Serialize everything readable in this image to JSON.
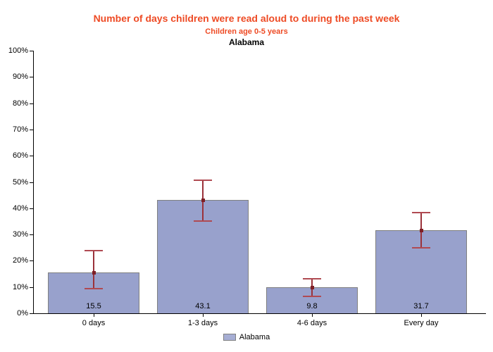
{
  "header": {
    "title": "Number of days children were read aloud to during the past week",
    "subtitle": "Children age 0-5 years",
    "region_title": "Alabama"
  },
  "colors": {
    "title": "#ee4b25",
    "subtitle": "#ee4b25",
    "region_title": "#000000",
    "bar_fill": "#98a1cc",
    "bar_border": "#808080",
    "legend_swatch_fill": "#a6aed4",
    "error_line": "#9b323a",
    "error_cap": "#b04a52",
    "error_dot": "#7e1f26",
    "axis": "#000000"
  },
  "chart_data": {
    "type": "bar",
    "title": "Number of days children were read aloud to during the past week",
    "subtitle": "Children age 0-5 years",
    "region": "Alabama",
    "categories": [
      "0 days",
      "1-3 days",
      "4-6 days",
      "Every day"
    ],
    "series": [
      {
        "name": "Alabama",
        "values": [
          15.5,
          43.1,
          9.8,
          31.7
        ],
        "ci_low": [
          9.3,
          35.1,
          6.4,
          24.9
        ],
        "ci_high": [
          24.0,
          50.9,
          13.3,
          38.5
        ]
      }
    ],
    "value_labels": [
      "15.5",
      "43.1",
      "9.8",
      "31.7"
    ],
    "xlabel": "",
    "ylabel": "",
    "ylim": [
      0,
      100
    ],
    "ytick_step": 10,
    "ytick_suffix": "%",
    "grid": false,
    "error_bars": true,
    "legend_position": "bottom-center"
  },
  "legend": {
    "items": [
      {
        "label": "Alabama"
      }
    ]
  }
}
